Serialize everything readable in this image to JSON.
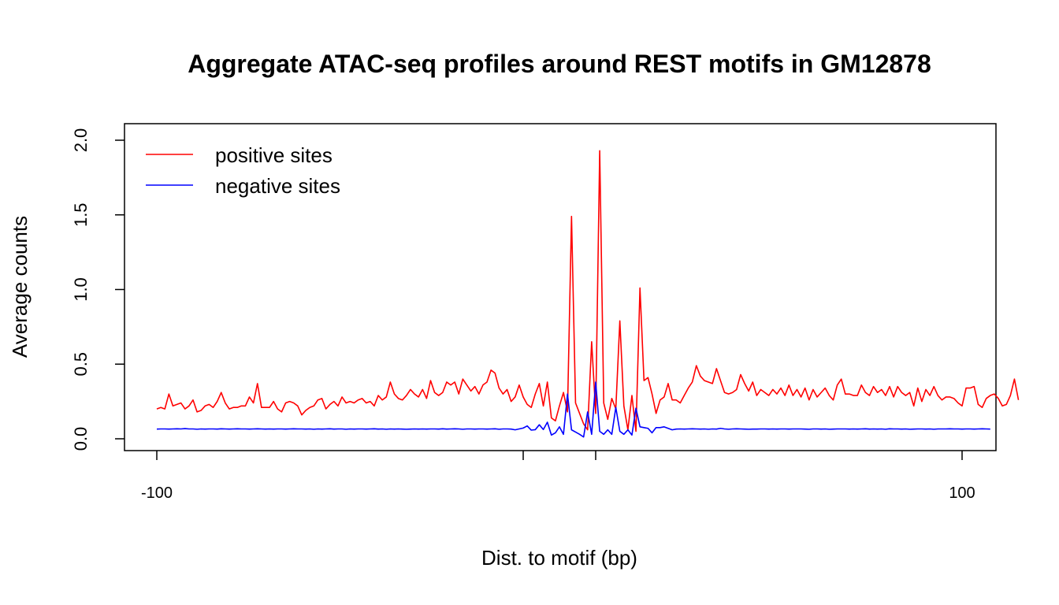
{
  "chart_data": {
    "type": "line",
    "title": "Aggregate ATAC-seq profiles around REST motifs in GM12878",
    "xlabel": "Dist. to motif (bp)",
    "ylabel": "Average counts",
    "xlim": [
      -100,
      100
    ],
    "ylim": [
      0,
      2.0
    ],
    "x_tick_marks": [
      -100,
      -9,
      9,
      100
    ],
    "x_tick_labels": [
      "-100",
      "",
      "",
      "100"
    ],
    "y_ticks": [
      0,
      0.5,
      1.0,
      1.5,
      2.0
    ],
    "y_tick_labels": [
      "0.0",
      "0.5",
      "1.0",
      "1.5",
      "2.0"
    ],
    "legend_position": "top-left",
    "grid": false,
    "x_start": -100,
    "x_step": 1,
    "series": [
      {
        "name": "positive sites",
        "color": "#ff0000",
        "values": [
          0.2,
          0.21,
          0.2,
          0.3,
          0.22,
          0.23,
          0.24,
          0.2,
          0.22,
          0.26,
          0.18,
          0.19,
          0.22,
          0.23,
          0.21,
          0.25,
          0.31,
          0.24,
          0.2,
          0.21,
          0.21,
          0.22,
          0.22,
          0.28,
          0.24,
          0.37,
          0.21,
          0.21,
          0.21,
          0.25,
          0.2,
          0.18,
          0.24,
          0.25,
          0.24,
          0.22,
          0.16,
          0.19,
          0.21,
          0.22,
          0.26,
          0.27,
          0.2,
          0.23,
          0.25,
          0.22,
          0.28,
          0.24,
          0.25,
          0.24,
          0.26,
          0.27,
          0.24,
          0.25,
          0.22,
          0.29,
          0.26,
          0.28,
          0.38,
          0.3,
          0.27,
          0.26,
          0.29,
          0.33,
          0.3,
          0.28,
          0.33,
          0.27,
          0.39,
          0.31,
          0.29,
          0.31,
          0.38,
          0.36,
          0.38,
          0.3,
          0.4,
          0.36,
          0.32,
          0.35,
          0.3,
          0.36,
          0.38,
          0.46,
          0.44,
          0.34,
          0.3,
          0.33,
          0.25,
          0.28,
          0.36,
          0.28,
          0.23,
          0.21,
          0.3,
          0.37,
          0.22,
          0.38,
          0.14,
          0.12,
          0.22,
          0.31,
          0.18,
          1.49,
          0.24,
          0.17,
          0.1,
          0.06,
          0.65,
          0.17,
          1.93,
          0.24,
          0.13,
          0.27,
          0.2,
          0.79,
          0.22,
          0.06,
          0.29,
          0.05,
          1.01,
          0.39,
          0.41,
          0.3,
          0.17,
          0.26,
          0.28,
          0.37,
          0.26,
          0.26,
          0.24,
          0.29,
          0.34,
          0.38,
          0.49,
          0.42,
          0.39,
          0.38,
          0.37,
          0.47,
          0.39,
          0.31,
          0.3,
          0.31,
          0.33,
          0.43,
          0.37,
          0.32,
          0.38,
          0.29,
          0.33,
          0.31,
          0.29,
          0.33,
          0.3,
          0.34,
          0.29,
          0.36,
          0.29,
          0.33,
          0.28,
          0.34,
          0.26,
          0.33,
          0.28,
          0.31,
          0.34,
          0.29,
          0.26,
          0.36,
          0.4,
          0.3,
          0.3,
          0.29,
          0.29,
          0.36,
          0.31,
          0.29,
          0.35,
          0.31,
          0.33,
          0.29,
          0.35,
          0.28,
          0.35,
          0.31,
          0.29,
          0.31,
          0.22,
          0.34,
          0.25,
          0.33,
          0.29,
          0.35,
          0.29,
          0.26,
          0.28,
          0.28,
          0.27,
          0.24,
          0.22,
          0.34,
          0.34,
          0.35,
          0.23,
          0.21,
          0.27,
          0.29,
          0.3,
          0.27,
          0.22,
          0.23,
          0.29,
          0.4,
          0.26
        ]
      },
      {
        "name": "negative sites",
        "color": "#0000ff",
        "values": [
          0.065,
          0.066,
          0.066,
          0.065,
          0.066,
          0.067,
          0.066,
          0.068,
          0.066,
          0.066,
          0.064,
          0.066,
          0.065,
          0.066,
          0.066,
          0.065,
          0.067,
          0.066,
          0.065,
          0.066,
          0.067,
          0.066,
          0.066,
          0.065,
          0.066,
          0.067,
          0.066,
          0.065,
          0.066,
          0.065,
          0.066,
          0.066,
          0.065,
          0.066,
          0.067,
          0.066,
          0.066,
          0.065,
          0.066,
          0.064,
          0.066,
          0.065,
          0.066,
          0.067,
          0.065,
          0.066,
          0.066,
          0.064,
          0.066,
          0.065,
          0.066,
          0.066,
          0.065,
          0.066,
          0.067,
          0.065,
          0.066,
          0.064,
          0.066,
          0.065,
          0.066,
          0.065,
          0.064,
          0.065,
          0.066,
          0.065,
          0.066,
          0.065,
          0.066,
          0.066,
          0.065,
          0.067,
          0.065,
          0.066,
          0.067,
          0.066,
          0.064,
          0.066,
          0.066,
          0.065,
          0.066,
          0.066,
          0.065,
          0.066,
          0.067,
          0.064,
          0.066,
          0.066,
          0.065,
          0.06,
          0.066,
          0.072,
          0.086,
          0.058,
          0.061,
          0.094,
          0.062,
          0.111,
          0.025,
          0.04,
          0.08,
          0.03,
          0.3,
          0.06,
          0.045,
          0.03,
          0.012,
          0.18,
          0.03,
          0.38,
          0.05,
          0.03,
          0.06,
          0.03,
          0.21,
          0.05,
          0.03,
          0.06,
          0.025,
          0.205,
          0.08,
          0.075,
          0.07,
          0.04,
          0.075,
          0.075,
          0.08,
          0.07,
          0.06,
          0.065,
          0.066,
          0.065,
          0.066,
          0.067,
          0.066,
          0.065,
          0.066,
          0.064,
          0.066,
          0.065,
          0.07,
          0.066,
          0.064,
          0.066,
          0.067,
          0.066,
          0.065,
          0.064,
          0.065,
          0.065,
          0.066,
          0.066,
          0.065,
          0.066,
          0.065,
          0.066,
          0.066,
          0.065,
          0.066,
          0.066,
          0.066,
          0.065,
          0.064,
          0.066,
          0.066,
          0.065,
          0.066,
          0.064,
          0.065,
          0.066,
          0.066,
          0.066,
          0.065,
          0.066,
          0.065,
          0.066,
          0.067,
          0.065,
          0.066,
          0.065,
          0.066,
          0.064,
          0.067,
          0.066,
          0.066,
          0.065,
          0.066,
          0.064,
          0.065,
          0.066,
          0.066,
          0.065,
          0.066,
          0.064,
          0.066,
          0.066,
          0.066,
          0.067,
          0.066,
          0.066,
          0.065,
          0.066,
          0.066,
          0.065,
          0.066,
          0.067,
          0.066,
          0.065
        ]
      }
    ]
  }
}
